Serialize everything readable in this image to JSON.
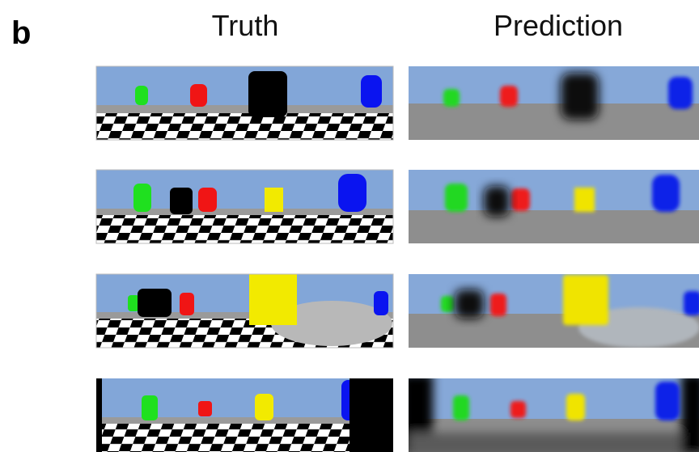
{
  "panel_label": "b",
  "columns": [
    "Truth",
    "Prediction"
  ]
}
